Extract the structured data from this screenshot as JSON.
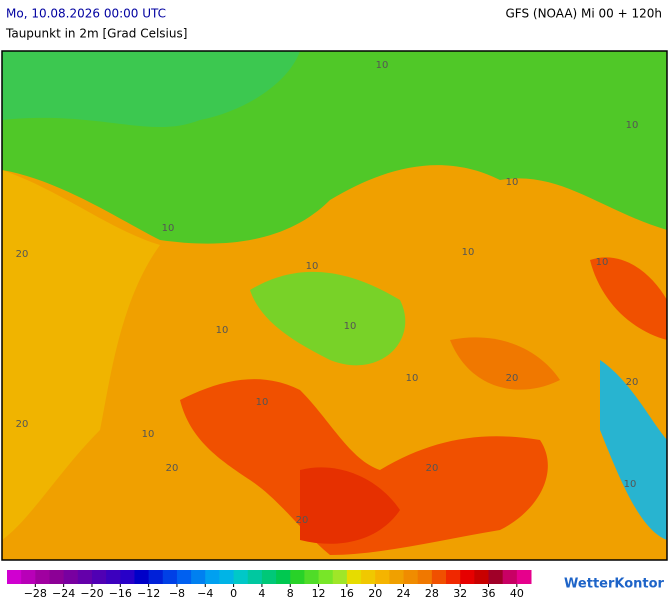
{
  "header": {
    "date": "Mo, 10.08.2026 00:00 UTC",
    "model": "GFS (NOAA) Mi 00 + 120h",
    "title": "Taupunkt in 2m [Grad Celsius]"
  },
  "map": {
    "contour_labels": [
      "10",
      "10",
      "10",
      "10",
      "10",
      "10",
      "10",
      "10",
      "10",
      "10",
      "10",
      "20",
      "20",
      "20",
      "20",
      "20",
      "20",
      "20",
      "10",
      "10"
    ]
  },
  "colorbar": {
    "range": [
      -32,
      42
    ],
    "colors": [
      "#d000d0",
      "#b800b8",
      "#a000a0",
      "#8c0096",
      "#7800a0",
      "#6400aa",
      "#5000b4",
      "#3c00be",
      "#2800c8",
      "#0000c8",
      "#0020d8",
      "#0040e6",
      "#0060f0",
      "#0080f0",
      "#00a0f0",
      "#00b4e6",
      "#00c8c8",
      "#00c8a0",
      "#00c878",
      "#00c850",
      "#28d228",
      "#50dc28",
      "#78e628",
      "#a0e628",
      "#e6dc00",
      "#f0c800",
      "#f5b400",
      "#f0a000",
      "#f08c00",
      "#f07800",
      "#f05000",
      "#f02800",
      "#e60000",
      "#c80000",
      "#a00028",
      "#c80064",
      "#e6008c"
    ],
    "ticks": [
      {
        "value": -28,
        "label": "−28"
      },
      {
        "value": -24,
        "label": "−24"
      },
      {
        "value": -20,
        "label": "−20"
      },
      {
        "value": -16,
        "label": "−16"
      },
      {
        "value": -12,
        "label": "−12"
      },
      {
        "value": -8,
        "label": "−8"
      },
      {
        "value": -4,
        "label": "−4"
      },
      0,
      4,
      8,
      12,
      16,
      20,
      24,
      28,
      32,
      36,
      40
    ]
  },
  "brand": "WetterKontor"
}
